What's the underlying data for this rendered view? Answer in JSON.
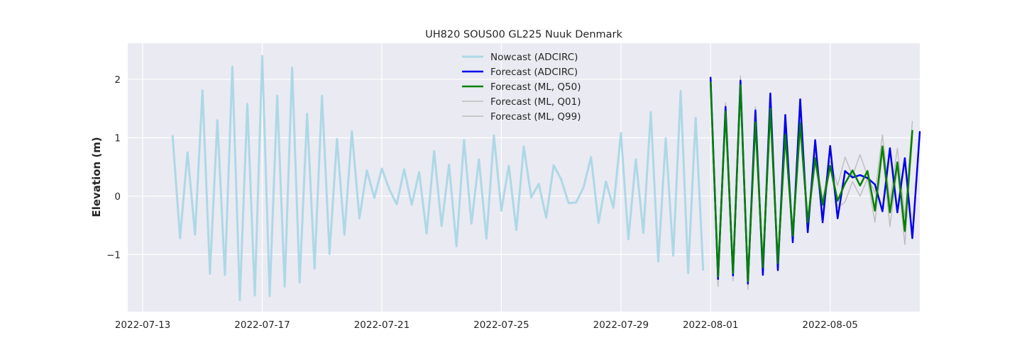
{
  "chart_data": {
    "type": "line",
    "title": "UH820 SOUS00 GL225 Nuuk Denmark",
    "xlabel": "",
    "ylabel": "Elevation (m)",
    "xlim": [
      "2022-07-12T12:00",
      "2022-08-08T00:00"
    ],
    "ylim": [
      -1.98,
      2.62
    ],
    "x_ticks": [
      "2022-07-13",
      "2022-07-17",
      "2022-07-21",
      "2022-07-25",
      "2022-07-29",
      "2022-08-01",
      "2022-08-05"
    ],
    "y_ticks": [
      {
        "value": -1,
        "label": "−1"
      },
      {
        "value": 0,
        "label": "0"
      },
      {
        "value": 1,
        "label": "1"
      },
      {
        "value": 2,
        "label": "2"
      }
    ],
    "grid": true,
    "legend_position": "top-center",
    "background": "#EAEAF2",
    "series": [
      {
        "name": "Nowcast (ADCIRC)",
        "color": "#ADD8E6",
        "width": 3,
        "start": "2022-07-14T00:00",
        "step_hours": 6,
        "values": [
          1.03,
          -0.72,
          0.75,
          -0.66,
          1.81,
          -1.33,
          1.3,
          -1.35,
          2.22,
          -1.78,
          1.58,
          -1.7,
          2.4,
          -1.71,
          1.72,
          -1.55,
          2.2,
          -1.48,
          1.41,
          -1.24,
          1.72,
          -0.99,
          0.98,
          -0.66,
          1.11,
          -0.38,
          0.44,
          -0.03,
          0.47,
          0.12,
          -0.14,
          0.46,
          -0.15,
          0.41,
          -0.64,
          0.77,
          -0.51,
          0.54,
          -0.86,
          0.96,
          -0.47,
          0.63,
          -0.73,
          1.04,
          -0.25,
          0.52,
          -0.58,
          0.85,
          -0.02,
          0.21,
          -0.37,
          0.53,
          0.29,
          -0.12,
          -0.11,
          0.15,
          0.67,
          -0.46,
          0.25,
          -0.2,
          1.08,
          -0.74,
          0.63,
          -0.63,
          1.44,
          -1.12,
          0.99,
          -1.02,
          1.8,
          -1.32,
          1.34,
          -1.26
        ]
      },
      {
        "name": "Forecast (ADCIRC)",
        "color": "#0000EE",
        "width": 2.5,
        "start": "2022-08-01T00:00",
        "step_hours": 6,
        "values": [
          2.03,
          -1.42,
          1.53,
          -1.36,
          1.98,
          -1.5,
          1.47,
          -1.35,
          1.76,
          -1.27,
          1.39,
          -0.79,
          1.66,
          -0.62,
          0.96,
          -0.45,
          0.86,
          -0.38,
          0.43,
          0.32,
          0.36,
          0.31,
          0.2,
          -0.26,
          0.82,
          -0.28,
          0.65,
          -0.72,
          1.1
        ]
      },
      {
        "name": "Forecast (ML, Q50)",
        "color": "#008000",
        "width": 2.5,
        "start": "2022-08-01T00:00",
        "step_hours": 6,
        "values": [
          1.95,
          -1.38,
          1.45,
          -1.32,
          1.9,
          -1.46,
          1.27,
          -1.22,
          1.5,
          -1.15,
          1.05,
          -0.68,
          1.25,
          -0.45,
          0.65,
          -0.15,
          0.52,
          -0.08,
          0.22,
          0.44,
          0.18,
          0.43,
          -0.25,
          0.85,
          -0.28,
          0.58,
          -0.6,
          1.12
        ]
      },
      {
        "name": "Forecast (ML, Q01)",
        "color": "#BDBDBD",
        "width": 1.4,
        "start": "2022-08-01T00:00",
        "step_hours": 6,
        "values": [
          1.88,
          -1.55,
          1.4,
          -1.45,
          1.82,
          -1.6,
          1.18,
          -1.35,
          1.4,
          -1.25,
          0.95,
          -0.78,
          1.1,
          -0.55,
          0.55,
          -0.28,
          0.48,
          -0.2,
          -0.1,
          0.25,
          0.0,
          0.3,
          -0.45,
          0.75,
          -0.52,
          0.48,
          -0.83,
          1.0
        ]
      },
      {
        "name": "Forecast (ML, Q99)",
        "color": "#BDBDBD",
        "width": 1.4,
        "start": "2022-08-01T00:00",
        "step_hours": 6,
        "values": [
          2.0,
          -1.25,
          1.6,
          -1.2,
          2.06,
          -1.35,
          1.53,
          -1.1,
          1.62,
          -1.05,
          1.15,
          -0.55,
          1.38,
          -0.35,
          0.75,
          -0.05,
          0.6,
          0.18,
          0.67,
          0.35,
          0.71,
          0.35,
          0.05,
          1.05,
          -0.1,
          0.82,
          -0.35,
          1.28
        ]
      }
    ]
  }
}
